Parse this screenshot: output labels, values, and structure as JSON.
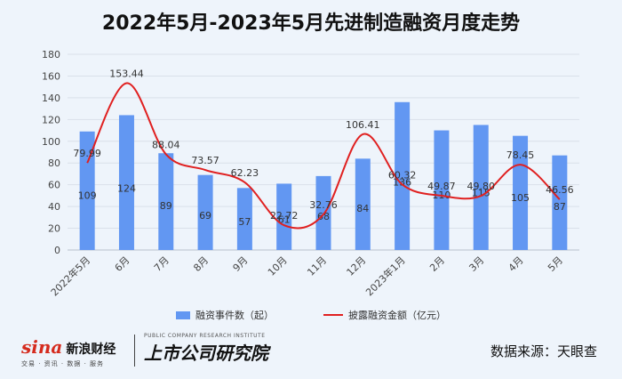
{
  "chart_data": {
    "type": "bar",
    "title": "2022年5月-2023年5月先进制造融资月度走势",
    "categories": [
      "2022年5月",
      "6月",
      "7月",
      "8月",
      "9月",
      "10月",
      "11月",
      "12月",
      "2023年1月",
      "2月",
      "3月",
      "4月",
      "5月"
    ],
    "series": [
      {
        "name": "融资事件数（起）",
        "type": "bar",
        "color": "#6297f2",
        "values": [
          109,
          124,
          89,
          69,
          57,
          61,
          68,
          84,
          136,
          110,
          115,
          105,
          87
        ]
      },
      {
        "name": "披露融资金额（亿元）",
        "type": "line",
        "color": "#e02020",
        "values": [
          79.99,
          153.44,
          88.04,
          73.57,
          62.23,
          22.72,
          32.76,
          106.41,
          60.32,
          49.87,
          49.8,
          78.45,
          46.56
        ]
      }
    ],
    "ylim": [
      0,
      180
    ],
    "yticks": [
      0,
      20,
      40,
      60,
      80,
      100,
      120,
      140,
      160,
      180
    ],
    "grid": true,
    "legend_position": "bottom"
  },
  "footer": {
    "sina_logo": "sina",
    "sina_name": "新浪财经",
    "sina_sub": "交易 · 资讯 · 数据 · 服务",
    "brand_en": "PUBLIC COMPANY RESEARCH INSTITUTE",
    "brand_zh": "上市公司研究院",
    "source": "数据来源：天眼查"
  }
}
